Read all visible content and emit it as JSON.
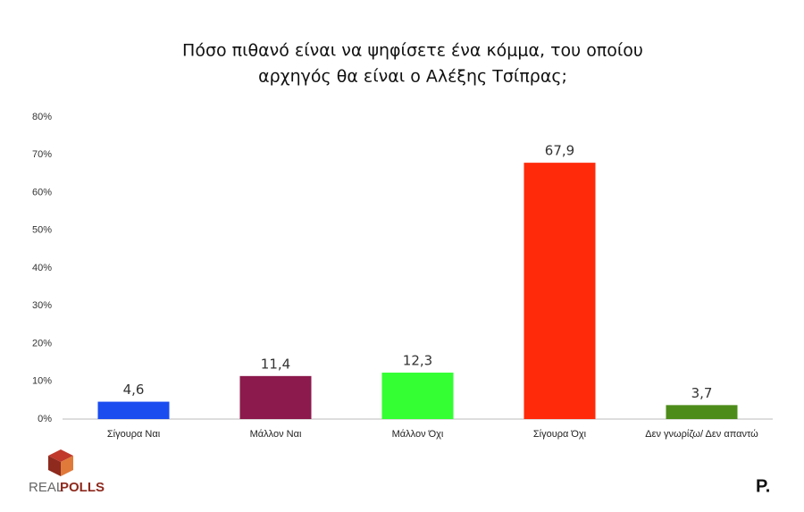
{
  "chart_data": {
    "type": "bar",
    "title": [
      "Πόσο πιθανό είναι να ψηφίσετε ένα κόμμα, του οποίου",
      "αρχηγός θα είναι ο Αλέξης Τσίπρας;"
    ],
    "categories": [
      "Σίγουρα Ναι",
      "Μάλλον Ναι",
      "Μάλλον Όχι",
      "Σίγουρα Όχι",
      "Δεν γνωρίζω/ Δεν απαντώ"
    ],
    "values": [
      4.6,
      11.4,
      12.3,
      67.9,
      3.7
    ],
    "value_labels": [
      "4,6",
      "11,4",
      "12,3",
      "67,9",
      "3,7"
    ],
    "colors": [
      "#1a4cf0",
      "#8c1a4c",
      "#33ff33",
      "#ff2a0a",
      "#4d8c1a"
    ],
    "ylim": [
      0,
      80
    ],
    "yticks": [
      {
        "value": 0,
        "label": "0%"
      },
      {
        "value": 10,
        "label": "10%"
      },
      {
        "value": 20,
        "label": "20%"
      },
      {
        "value": 30,
        "label": "30%"
      },
      {
        "value": 40,
        "label": "40%"
      },
      {
        "value": 50,
        "label": "50%"
      },
      {
        "value": 60,
        "label": "60%"
      },
      {
        "value": 70,
        "label": "70%"
      },
      {
        "value": 80,
        "label": "80%"
      }
    ],
    "grid": false
  },
  "logos": {
    "left_a": "REAL",
    "left_b": "POLLS",
    "right": "P."
  }
}
